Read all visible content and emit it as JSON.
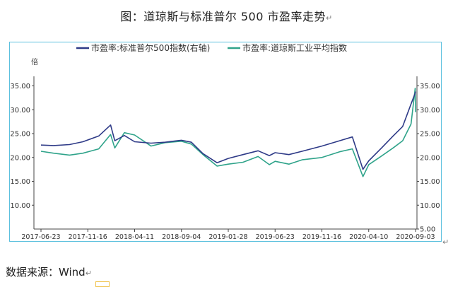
{
  "page": {
    "title": "图：道琼斯与标准普尔 500 市盈率走势",
    "source": "数据来源：Wind",
    "para_mark": "↵"
  },
  "chart_data": {
    "type": "line",
    "unit_label": "倍",
    "x_ticks": [
      "2017-06-23",
      "2017-11-16",
      "2018-04-11",
      "2018-09-04",
      "2019-01-28",
      "2019-06-23",
      "2019-11-16",
      "2020-04-10",
      "2020-09-03"
    ],
    "left_axis": {
      "ylim": [
        5,
        37
      ],
      "ticks": [
        "35.00",
        "30.00",
        "25.00",
        "20.00",
        "15.00",
        "10.00"
      ]
    },
    "right_axis": {
      "ylim": [
        5,
        37
      ],
      "ticks": [
        "35.00",
        "30.00",
        "25.00",
        "20.00",
        "15.00",
        "10.00",
        "5.00"
      ]
    },
    "legend_position": "top",
    "series": [
      {
        "name": "市盈率:标准普尔500指数(右轴)",
        "color": "#2e3a87",
        "axis": "right",
        "points": [
          [
            "2017-06-23",
            22.6
          ],
          [
            "2017-08-01",
            22.5
          ],
          [
            "2017-09-20",
            22.7
          ],
          [
            "2017-11-01",
            23.3
          ],
          [
            "2017-12-20",
            24.5
          ],
          [
            "2018-01-26",
            26.8
          ],
          [
            "2018-02-08",
            23.5
          ],
          [
            "2018-03-10",
            24.6
          ],
          [
            "2018-04-11",
            23.3
          ],
          [
            "2018-06-01",
            23.0
          ],
          [
            "2018-07-15",
            23.2
          ],
          [
            "2018-09-04",
            23.6
          ],
          [
            "2018-10-05",
            23.2
          ],
          [
            "2018-11-10",
            20.8
          ],
          [
            "2018-12-24",
            18.9
          ],
          [
            "2019-01-28",
            19.8
          ],
          [
            "2019-03-15",
            20.6
          ],
          [
            "2019-05-01",
            21.4
          ],
          [
            "2019-06-05",
            20.4
          ],
          [
            "2019-06-23",
            21.0
          ],
          [
            "2019-08-05",
            20.6
          ],
          [
            "2019-09-15",
            21.3
          ],
          [
            "2019-11-16",
            22.4
          ],
          [
            "2020-01-10",
            23.5
          ],
          [
            "2020-02-19",
            24.3
          ],
          [
            "2020-03-23",
            17.5
          ],
          [
            "2020-04-10",
            19.3
          ],
          [
            "2020-05-20",
            22.0
          ],
          [
            "2020-06-25",
            24.5
          ],
          [
            "2020-07-25",
            26.5
          ],
          [
            "2020-08-20",
            31.2
          ],
          [
            "2020-09-02",
            33.5
          ],
          [
            "2020-09-03",
            33.8
          ]
        ]
      },
      {
        "name": "市盈率:道琼斯工业平均指数",
        "color": "#2fa38a",
        "axis": "left",
        "points": [
          [
            "2017-06-23",
            21.3
          ],
          [
            "2017-08-01",
            20.9
          ],
          [
            "2017-09-20",
            20.5
          ],
          [
            "2017-11-01",
            20.9
          ],
          [
            "2017-12-20",
            21.8
          ],
          [
            "2018-01-26",
            24.8
          ],
          [
            "2018-02-08",
            22.0
          ],
          [
            "2018-03-10",
            25.2
          ],
          [
            "2018-04-11",
            24.7
          ],
          [
            "2018-06-01",
            22.4
          ],
          [
            "2018-07-15",
            23.1
          ],
          [
            "2018-09-04",
            23.4
          ],
          [
            "2018-10-05",
            22.8
          ],
          [
            "2018-11-10",
            20.6
          ],
          [
            "2018-12-24",
            18.2
          ],
          [
            "2019-01-28",
            18.6
          ],
          [
            "2019-03-15",
            19.0
          ],
          [
            "2019-05-01",
            20.2
          ],
          [
            "2019-06-05",
            18.5
          ],
          [
            "2019-06-23",
            19.2
          ],
          [
            "2019-08-05",
            18.6
          ],
          [
            "2019-09-15",
            19.5
          ],
          [
            "2019-11-16",
            20.0
          ],
          [
            "2020-01-10",
            21.2
          ],
          [
            "2020-02-19",
            21.8
          ],
          [
            "2020-03-23",
            16.0
          ],
          [
            "2020-04-10",
            18.5
          ],
          [
            "2020-05-20",
            20.3
          ],
          [
            "2020-06-25",
            22.0
          ],
          [
            "2020-07-25",
            23.5
          ],
          [
            "2020-08-20",
            27.0
          ],
          [
            "2020-09-02",
            34.5
          ],
          [
            "2020-09-03",
            29.5
          ]
        ]
      }
    ]
  }
}
